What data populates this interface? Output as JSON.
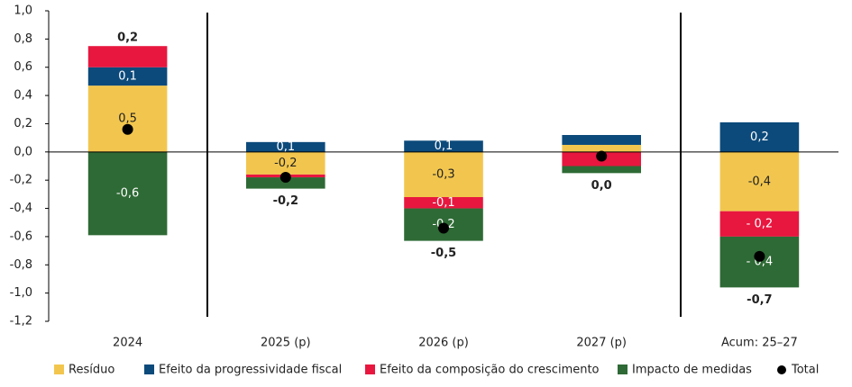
{
  "chart_data": {
    "type": "stacked-bar",
    "categories": [
      "2024",
      "2025 (p)",
      "2026 (p)",
      "2027 (p)",
      "Acum: 25–27"
    ],
    "series": [
      {
        "name": "Resíduo",
        "color": "#f2c64e",
        "values": [
          0.47,
          -0.16,
          -0.32,
          0.05,
          -0.42
        ],
        "value_labels": [
          "0,5",
          "-0,2",
          "-0,3",
          null,
          "-0,4"
        ]
      },
      {
        "name": "Efeito da progressividade fiscal",
        "color": "#0c4a7b",
        "values": [
          0.13,
          0.07,
          0.08,
          0.07,
          0.21
        ],
        "value_labels": [
          "0,1",
          "0,1",
          "0,1",
          null,
          "0,2"
        ]
      },
      {
        "name": "Efeito da composição do crescimento",
        "color": "#e8173f",
        "values": [
          0.15,
          -0.02,
          -0.08,
          -0.1,
          -0.18
        ],
        "value_labels": [
          null,
          null,
          "-0,1",
          null,
          "- 0,2"
        ]
      },
      {
        "name": "Impacto de medidas",
        "color": "#2e6a35",
        "values": [
          -0.59,
          -0.08,
          -0.23,
          -0.05,
          -0.36
        ],
        "value_labels": [
          "-0,6",
          null,
          "-0,2",
          null,
          "- 0,4"
        ]
      },
      {
        "name": "Total",
        "color": "#000000",
        "style": "dot",
        "values": [
          0.16,
          -0.18,
          -0.54,
          -0.03,
          -0.74
        ],
        "value_labels": [
          "0,2",
          "-0,2",
          "-0,5",
          "0,0",
          "-0,7"
        ]
      }
    ],
    "ylim": [
      -1.2,
      1.0
    ],
    "yticks": [
      {
        "value": -1.2,
        "label": "-1,2"
      },
      {
        "value": -1.0,
        "label": "-1,0"
      },
      {
        "value": -0.8,
        "label": "-0,8"
      },
      {
        "value": -0.6,
        "label": "-0,6"
      },
      {
        "value": -0.4,
        "label": "-0,4"
      },
      {
        "value": -0.2,
        "label": "-0,2"
      },
      {
        "value": 0,
        "label": "0,0"
      },
      {
        "value": 0.2,
        "label": "0,2"
      },
      {
        "value": 0.4,
        "label": "0,4"
      },
      {
        "value": 0.6,
        "label": "0,6"
      },
      {
        "value": 0.8,
        "label": "0,8"
      },
      {
        "value": 1.0,
        "label": "1,0"
      }
    ]
  }
}
